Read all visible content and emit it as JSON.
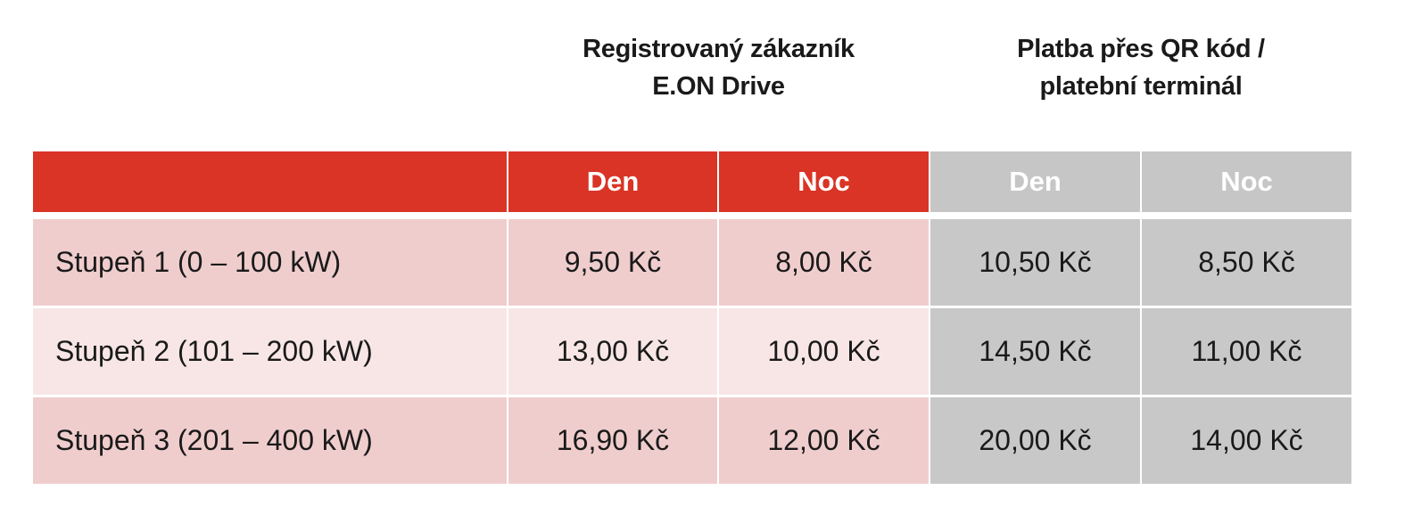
{
  "group_headers": [
    {
      "lines": [
        "Registrovaný zákazník",
        "E.ON Drive"
      ]
    },
    {
      "lines": [
        "Platba přes QR kód /",
        "platební terminál"
      ]
    }
  ],
  "columns": [
    "",
    "Den",
    "Noc",
    "Den",
    "Noc"
  ],
  "rows": [
    {
      "label": "Stupeň 1 (0 – 100 kW)",
      "values": [
        "9,50 Kč",
        "8,00 Kč",
        "10,50 Kč",
        "8,50 Kč"
      ]
    },
    {
      "label": "Stupeň 2 (101 – 200 kW)",
      "values": [
        "13,00 Kč",
        "10,00 Kč",
        "14,50 Kč",
        "11,00 Kč"
      ]
    },
    {
      "label": "Stupeň 3 (201 – 400 kW)",
      "values": [
        "16,90 Kč",
        "12,00 Kč",
        "20,00 Kč",
        "14,00 Kč"
      ]
    }
  ],
  "colors": {
    "accent": "#d93425",
    "row_odd": "#f0cdcd",
    "row_even": "#f8e6e6",
    "gray": "#c8c8c8"
  }
}
